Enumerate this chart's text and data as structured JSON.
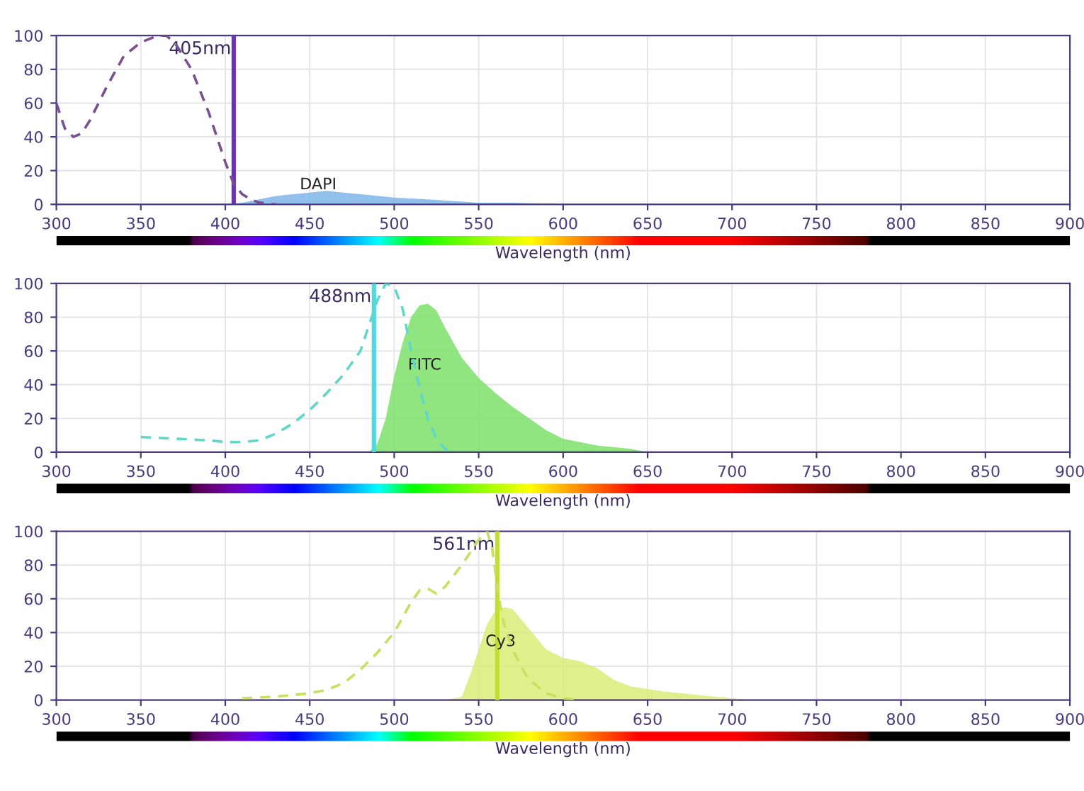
{
  "chart_data": [
    {
      "type": "line",
      "xlabel": "Wavelength (nm)",
      "xlim": [
        300,
        900
      ],
      "ylim": [
        0,
        100
      ],
      "xticks": [
        300,
        350,
        400,
        450,
        500,
        550,
        600,
        650,
        700,
        750,
        800,
        850,
        900
      ],
      "yticks": [
        0,
        20,
        40,
        60,
        80,
        100
      ],
      "grid": true,
      "series": [
        {
          "line_style": "dashed",
          "color": "#7a4f8f",
          "x": [
            300,
            305,
            310,
            315,
            320,
            330,
            340,
            350,
            360,
            365,
            370,
            380,
            390,
            400,
            405,
            410,
            415,
            420,
            430
          ],
          "values": [
            60,
            45,
            40,
            42,
            50,
            70,
            88,
            96,
            100,
            100,
            96,
            80,
            55,
            25,
            12,
            6,
            3,
            1,
            0
          ]
        },
        {
          "type": "area",
          "color": "#7fb5ea",
          "x": [
            400,
            410,
            420,
            430,
            440,
            450,
            460,
            470,
            480,
            500,
            520,
            550,
            570,
            600
          ],
          "values": [
            0,
            1,
            3,
            5,
            6,
            7,
            8,
            7,
            6,
            4,
            3,
            1,
            1,
            0
          ]
        }
      ],
      "ref_lines": [
        {
          "axis": "x",
          "value": 405,
          "label": "405nm",
          "color": "#6b2fb8"
        }
      ],
      "annotations": [
        {
          "text": "DAPI",
          "x": 455,
          "y": 7
        }
      ]
    },
    {
      "type": "line",
      "xlabel": "Wavelength (nm)",
      "xlim": [
        300,
        900
      ],
      "ylim": [
        0,
        100
      ],
      "xticks": [
        300,
        350,
        400,
        450,
        500,
        550,
        600,
        650,
        700,
        750,
        800,
        850,
        900
      ],
      "yticks": [
        0,
        20,
        40,
        60,
        80,
        100
      ],
      "grid": true,
      "series": [
        {
          "line_style": "dashed",
          "color": "#5fd8c8",
          "x": [
            350,
            370,
            390,
            400,
            410,
            420,
            430,
            440,
            450,
            460,
            470,
            480,
            485,
            490,
            495,
            500,
            505,
            510,
            515,
            520,
            525,
            530,
            535
          ],
          "values": [
            9,
            8,
            7,
            6,
            6,
            7,
            11,
            17,
            25,
            35,
            46,
            60,
            75,
            90,
            100,
            98,
            85,
            60,
            38,
            20,
            8,
            2,
            0
          ]
        },
        {
          "type": "area",
          "color": "#7ee06a",
          "x": [
            485,
            490,
            495,
            500,
            505,
            510,
            515,
            520,
            525,
            530,
            540,
            550,
            560,
            570,
            580,
            590,
            600,
            620,
            640,
            650
          ],
          "values": [
            0,
            5,
            20,
            45,
            65,
            80,
            87,
            88,
            84,
            74,
            56,
            44,
            35,
            27,
            20,
            13,
            8,
            4,
            2,
            0
          ]
        }
      ],
      "ref_lines": [
        {
          "axis": "x",
          "value": 488,
          "label": "488nm",
          "color": "#4fd8e0"
        }
      ],
      "annotations": [
        {
          "text": "FITC",
          "x": 518,
          "y": 47
        }
      ]
    },
    {
      "type": "line",
      "xlabel": "Wavelength (nm)",
      "xlim": [
        300,
        900
      ],
      "ylim": [
        0,
        100
      ],
      "xticks": [
        300,
        350,
        400,
        450,
        500,
        550,
        600,
        650,
        700,
        750,
        800,
        850,
        900
      ],
      "yticks": [
        0,
        20,
        40,
        60,
        80,
        100
      ],
      "grid": true,
      "series": [
        {
          "line_style": "dashed",
          "color": "#c8e060",
          "x": [
            410,
            430,
            450,
            460,
            470,
            480,
            490,
            500,
            510,
            515,
            520,
            525,
            530,
            540,
            550,
            555,
            558,
            562,
            565,
            570,
            575,
            580,
            590,
            600,
            610
          ],
          "values": [
            1,
            2,
            4,
            6,
            10,
            18,
            28,
            40,
            58,
            65,
            66,
            63,
            67,
            80,
            95,
            100,
            90,
            60,
            45,
            30,
            20,
            12,
            4,
            1,
            0
          ]
        },
        {
          "type": "area",
          "color": "#d8ec78",
          "x": [
            530,
            540,
            545,
            550,
            555,
            560,
            565,
            570,
            580,
            590,
            600,
            610,
            620,
            630,
            640,
            660,
            680,
            700,
            710
          ],
          "values": [
            0,
            2,
            15,
            30,
            45,
            53,
            55,
            54,
            42,
            30,
            25,
            23,
            19,
            12,
            8,
            5,
            3,
            1,
            0
          ]
        }
      ],
      "ref_lines": [
        {
          "axis": "x",
          "value": 561,
          "label": "561nm",
          "color": "#c0e030"
        }
      ],
      "annotations": [
        {
          "text": "Cy3",
          "x": 563,
          "y": 30
        }
      ]
    }
  ]
}
